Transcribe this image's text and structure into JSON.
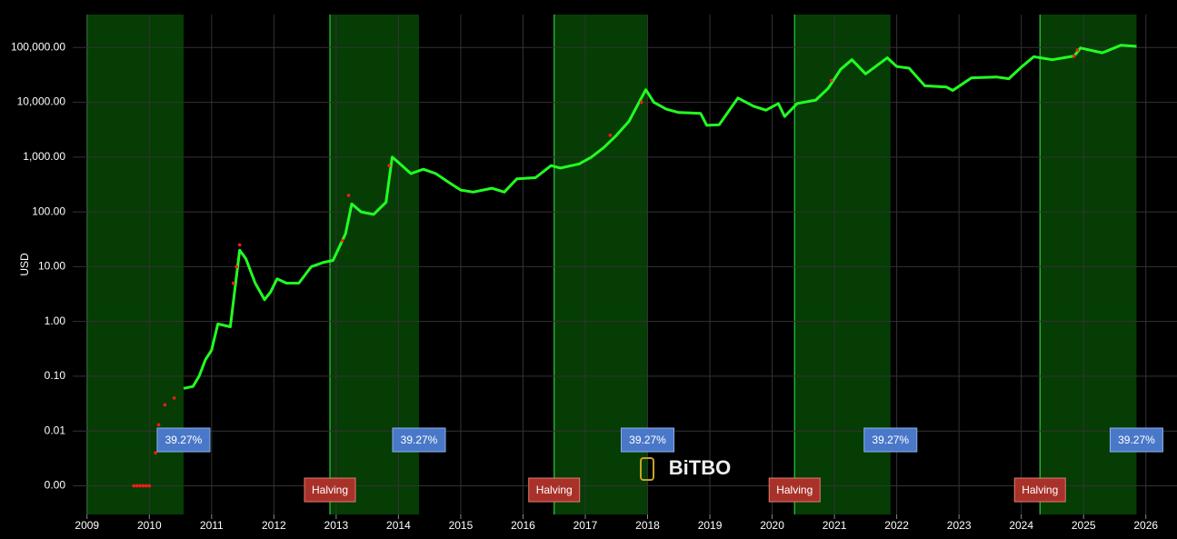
{
  "chart_data": {
    "type": "line",
    "y_label": "USD",
    "watermark": "BiTBO",
    "log_y": true,
    "grid": true,
    "xlim": [
      2008.77,
      2026.5
    ],
    "xticks": [
      2009,
      2010,
      2011,
      2012,
      2013,
      2014,
      2015,
      2016,
      2017,
      2018,
      2019,
      2020,
      2021,
      2022,
      2023,
      2024,
      2025,
      2026
    ],
    "ylim": [
      0.0003,
      400000
    ],
    "yticks": [
      {
        "value": 0.001,
        "label": "0.00"
      },
      {
        "value": 0.01,
        "label": "0.01"
      },
      {
        "value": 0.1,
        "label": "0.10"
      },
      {
        "value": 1,
        "label": "1.00"
      },
      {
        "value": 10,
        "label": "10.00"
      },
      {
        "value": 100,
        "label": "100.00"
      },
      {
        "value": 1000,
        "label": "1,000.00"
      },
      {
        "value": 10000,
        "label": "10,000.00"
      },
      {
        "value": 100000,
        "label": "100,000.00"
      }
    ],
    "regions": [
      {
        "start": 2009.0,
        "end": 2010.55,
        "label": "39.27%"
      },
      {
        "start": 2012.9,
        "end": 2014.33,
        "label": "39.27%"
      },
      {
        "start": 2016.5,
        "end": 2018.0,
        "label": "39.27%"
      },
      {
        "start": 2020.36,
        "end": 2021.9,
        "label": "39.27%"
      },
      {
        "start": 2024.3,
        "end": 2025.85,
        "label": "39.27%"
      }
    ],
    "annotations": [
      {
        "x": 2012.9,
        "text": "Halving"
      },
      {
        "x": 2016.5,
        "text": "Halving"
      },
      {
        "x": 2020.36,
        "text": "Halving"
      },
      {
        "x": 2024.3,
        "text": "Halving"
      }
    ],
    "series": [
      {
        "color": "#22ff22",
        "mode": "lines",
        "x": [
          2010.55,
          2010.7,
          2010.8,
          2010.9,
          2011.0,
          2011.1,
          2011.3,
          2011.45,
          2011.55,
          2011.7,
          2011.85,
          2011.95,
          2012.05,
          2012.2,
          2012.4,
          2012.6,
          2012.8,
          2012.95,
          2013.15,
          2013.25,
          2013.4,
          2013.6,
          2013.8,
          2013.9,
          2014.0,
          2014.2,
          2014.4,
          2014.6,
          2014.8,
          2015.0,
          2015.2,
          2015.5,
          2015.7,
          2015.9,
          2016.2,
          2016.45,
          2016.6,
          2016.9,
          2017.1,
          2017.3,
          2017.5,
          2017.7,
          2017.97,
          2018.1,
          2018.3,
          2018.5,
          2018.85,
          2018.95,
          2019.15,
          2019.45,
          2019.7,
          2019.9,
          2020.1,
          2020.2,
          2020.4,
          2020.7,
          2020.9,
          2021.1,
          2021.28,
          2021.5,
          2021.85,
          2022.0,
          2022.2,
          2022.45,
          2022.8,
          2022.9,
          2023.2,
          2023.6,
          2023.8,
          2024.0,
          2024.2,
          2024.5,
          2024.85,
          2024.95,
          2025.3,
          2025.6,
          2025.85
        ],
        "y": [
          0.06,
          0.065,
          0.1,
          0.2,
          0.3,
          0.9,
          0.8,
          20,
          14,
          5,
          2.5,
          3.5,
          6,
          5,
          5,
          10,
          12,
          13,
          40,
          140,
          100,
          90,
          150,
          1000,
          800,
          500,
          600,
          500,
          350,
          250,
          230,
          270,
          230,
          400,
          420,
          700,
          630,
          750,
          1000,
          1500,
          2500,
          4500,
          17000,
          10000,
          7500,
          6500,
          6300,
          3800,
          3900,
          12000,
          8500,
          7200,
          9500,
          5500,
          9500,
          11000,
          18000,
          40000,
          60000,
          33000,
          65000,
          45000,
          42000,
          20000,
          19000,
          16500,
          28000,
          29000,
          27000,
          44000,
          68000,
          60000,
          70000,
          98000,
          80000,
          110000,
          105000
        ]
      },
      {
        "color": "#ff1a1a",
        "mode": "markers",
        "x": [
          2009.75,
          2009.8,
          2009.85,
          2009.9,
          2009.95,
          2010.0,
          2010.1,
          2010.15,
          2010.25,
          2010.4,
          2011.35,
          2011.4,
          2011.45,
          2013.1,
          2013.2,
          2013.85,
          2017.4,
          2017.9,
          2020.95,
          2024.85,
          2024.9
        ],
        "y": [
          0.001,
          0.001,
          0.001,
          0.001,
          0.001,
          0.001,
          0.004,
          0.013,
          0.03,
          0.04,
          5,
          10,
          25,
          30,
          200,
          700,
          2500,
          10000,
          25000,
          70000,
          90000
        ]
      }
    ]
  }
}
